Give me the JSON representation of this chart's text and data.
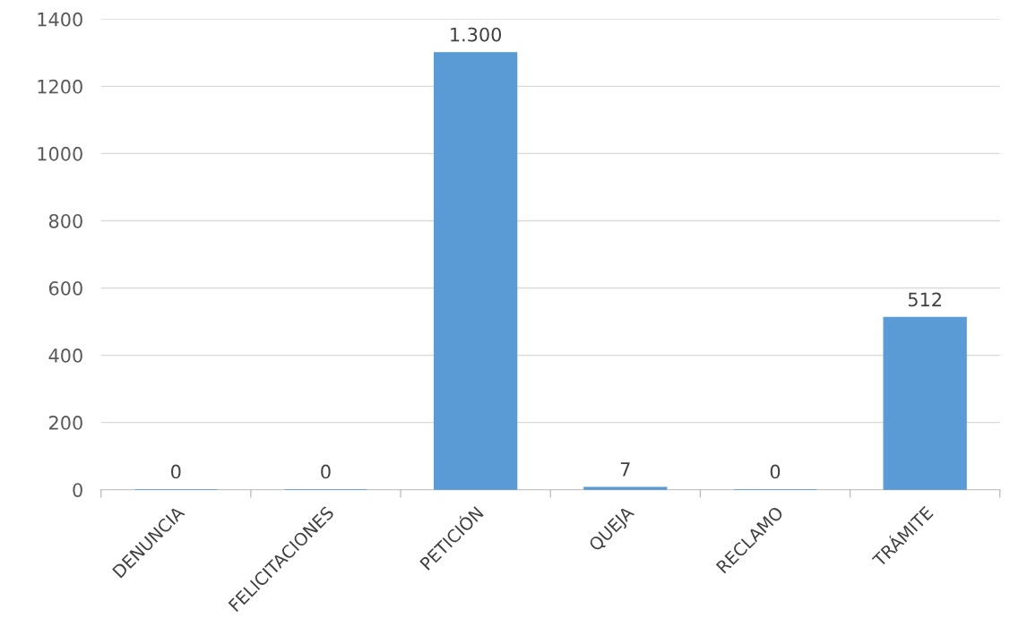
{
  "chart_data": {
    "type": "bar",
    "categories": [
      "DENUNCIA",
      "FELICITACIONES",
      "PETICIÓN",
      "QUEJA",
      "RECLAMO",
      "TRÁMITE"
    ],
    "values": [
      0,
      0,
      1300,
      7,
      0,
      512
    ],
    "value_labels": [
      "0",
      "0",
      "1.300",
      "7",
      "0",
      "512"
    ],
    "color": "#5b9bd5",
    "ylim": [
      0,
      1400
    ],
    "yticks": [
      0,
      200,
      400,
      600,
      800,
      1000,
      1200,
      1400
    ],
    "grid": "y"
  }
}
